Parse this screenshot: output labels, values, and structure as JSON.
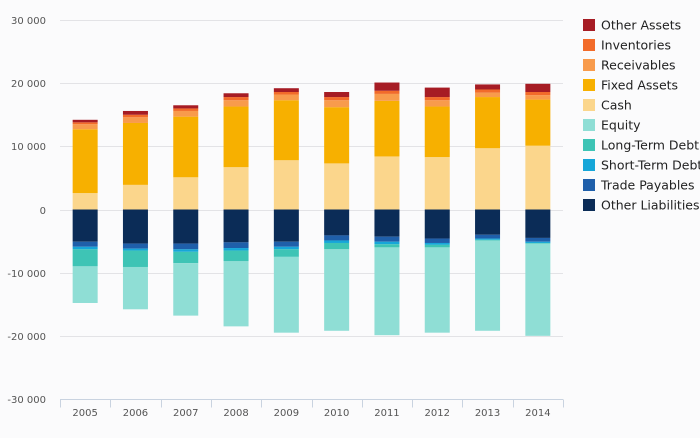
{
  "chart_data": {
    "type": "bar",
    "stacked": true,
    "title": "",
    "xlabel": "",
    "ylabel": "",
    "categories": [
      "2005",
      "2006",
      "2007",
      "2008",
      "2009",
      "2010",
      "2011",
      "2012",
      "2013",
      "2014"
    ],
    "ylim": [
      -30000,
      30000
    ],
    "yticks": [
      -30000,
      -20000,
      -10000,
      0,
      10000,
      20000,
      30000
    ],
    "ytick_labels": [
      "-30 000",
      "-20 000",
      "-10 000",
      "0",
      "10 000",
      "20 000",
      "30 000"
    ],
    "grid": true,
    "legend_position": "right",
    "series": [
      {
        "name": "Other Assets",
        "color": "#a61c24",
        "values": [
          400,
          600,
          500,
          600,
          600,
          800,
          1300,
          1500,
          800,
          1300
        ]
      },
      {
        "name": "Inventories",
        "color": "#f26b2a",
        "values": [
          300,
          400,
          400,
          500,
          400,
          500,
          500,
          500,
          500,
          500
        ]
      },
      {
        "name": "Receivables",
        "color": "#f89b4c",
        "values": [
          800,
          900,
          900,
          1000,
          900,
          1100,
          1100,
          1000,
          700,
          700
        ]
      },
      {
        "name": "Fixed Assets",
        "color": "#f7b000",
        "values": [
          10100,
          9800,
          9600,
          9600,
          9500,
          8900,
          8800,
          8000,
          8100,
          7300
        ]
      },
      {
        "name": "Cash",
        "color": "#fbd68c",
        "values": [
          2600,
          3900,
          5100,
          6700,
          7800,
          7300,
          8400,
          8300,
          9700,
          10100
        ]
      },
      {
        "name": "Equity",
        "color": "#8fded5",
        "values": [
          -5800,
          -6700,
          -8300,
          -10300,
          -12000,
          -12900,
          -13900,
          -13500,
          -14300,
          -14600
        ]
      },
      {
        "name": "Long-Term Debt",
        "color": "#3ec4b5",
        "values": [
          -2700,
          -2600,
          -1800,
          -1700,
          -1200,
          -1000,
          -500,
          -400,
          -100,
          -100
        ]
      },
      {
        "name": "Short-Term Debt",
        "color": "#16a6d8",
        "values": [
          -400,
          -300,
          -400,
          -400,
          -400,
          -400,
          -400,
          -300,
          -200,
          -200
        ]
      },
      {
        "name": "Trade Payables",
        "color": "#1f5faa",
        "values": [
          -800,
          -800,
          -900,
          -900,
          -800,
          -800,
          -800,
          -700,
          -600,
          -600
        ]
      },
      {
        "name": "Other Liabilities",
        "color": "#0b2c57",
        "values": [
          -5100,
          -5400,
          -5400,
          -5200,
          -5100,
          -4100,
          -4300,
          -4600,
          -4000,
          -4500
        ]
      }
    ]
  }
}
